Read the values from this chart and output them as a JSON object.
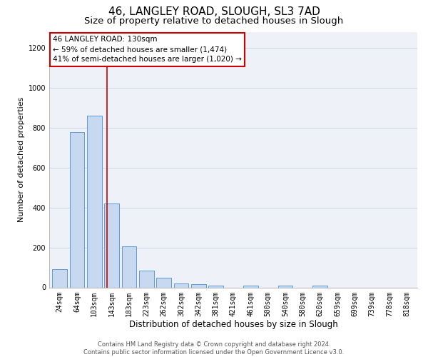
{
  "title": "46, LANGLEY ROAD, SLOUGH, SL3 7AD",
  "subtitle": "Size of property relative to detached houses in Slough",
  "xlabel": "Distribution of detached houses by size in Slough",
  "ylabel": "Number of detached properties",
  "categories": [
    "24sqm",
    "64sqm",
    "103sqm",
    "143sqm",
    "183sqm",
    "223sqm",
    "262sqm",
    "302sqm",
    "342sqm",
    "381sqm",
    "421sqm",
    "461sqm",
    "500sqm",
    "540sqm",
    "580sqm",
    "620sqm",
    "659sqm",
    "699sqm",
    "739sqm",
    "778sqm",
    "818sqm"
  ],
  "values": [
    90,
    780,
    860,
    420,
    205,
    85,
    50,
    20,
    15,
    10,
    0,
    10,
    0,
    10,
    0,
    10,
    0,
    0,
    0,
    0,
    0
  ],
  "bar_color": "#c6d9f0",
  "bar_edge_color": "#5b9bd5",
  "grid_color": "#d0d8e8",
  "background_color": "#eef2f8",
  "red_line_color": "#cc0000",
  "annotation_line1": "46 LANGLEY ROAD: 130sqm",
  "annotation_line2": "← 59% of detached houses are smaller (1,474)",
  "annotation_line3": "41% of semi-detached houses are larger (1,020) →",
  "annotation_box_color": "#ffffff",
  "annotation_border_color": "#cc0000",
  "ylim": [
    0,
    1280
  ],
  "yticks": [
    0,
    200,
    400,
    600,
    800,
    1000,
    1200
  ],
  "footer_line1": "Contains HM Land Registry data © Crown copyright and database right 2024.",
  "footer_line2": "Contains public sector information licensed under the Open Government Licence v3.0.",
  "title_fontsize": 11,
  "subtitle_fontsize": 9.5,
  "tick_fontsize": 7,
  "ylabel_fontsize": 8,
  "xlabel_fontsize": 8.5,
  "annotation_fontsize": 7.5,
  "footer_fontsize": 6
}
